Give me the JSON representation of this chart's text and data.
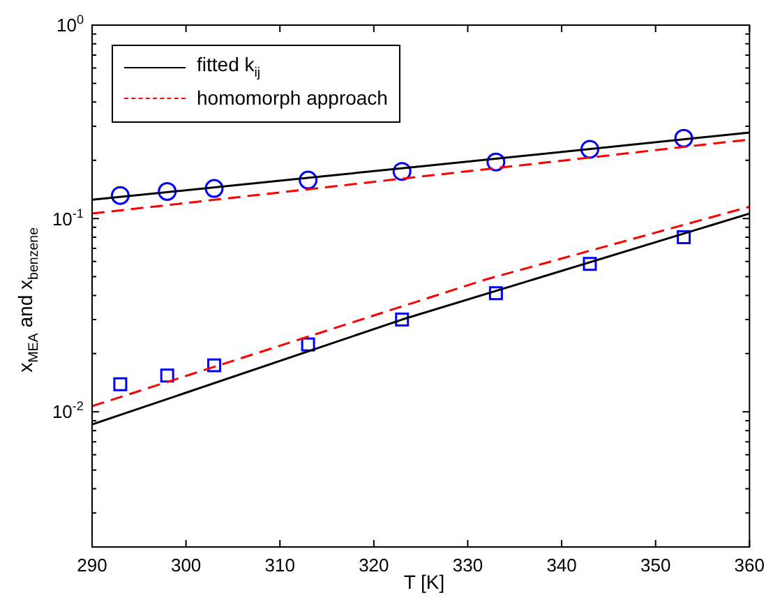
{
  "chart_data": {
    "type": "line",
    "xlabel": "T [K]",
    "ylabel": "x$_{MEA}$ and x$_{benzene}$",
    "log": "y",
    "xlim": [
      290,
      360
    ],
    "xticks": [
      290,
      300,
      310,
      320,
      330,
      340,
      350,
      360
    ],
    "ylim": [
      0.002,
      1
    ],
    "yticks": [
      {
        "value": 0.002,
        "label": null
      },
      {
        "value": 0.003,
        "label": null
      },
      {
        "value": 0.004,
        "label": null
      },
      {
        "value": 0.005,
        "label": null
      },
      {
        "value": 0.006,
        "label": null
      },
      {
        "value": 0.007,
        "label": null
      },
      {
        "value": 0.008,
        "label": null
      },
      {
        "value": 0.009,
        "label": null
      },
      {
        "value": 0.01,
        "label": "10$^{-2}$"
      },
      {
        "value": 0.02,
        "label": null
      },
      {
        "value": 0.03,
        "label": null
      },
      {
        "value": 0.04,
        "label": null
      },
      {
        "value": 0.05,
        "label": null
      },
      {
        "value": 0.06,
        "label": null
      },
      {
        "value": 0.07,
        "label": null
      },
      {
        "value": 0.08,
        "label": null
      },
      {
        "value": 0.09,
        "label": null
      },
      {
        "value": 0.1,
        "label": "10$^{-1}$"
      },
      {
        "value": 0.2,
        "label": null
      },
      {
        "value": 0.3,
        "label": null
      },
      {
        "value": 0.4,
        "label": null
      },
      {
        "value": 0.5,
        "label": null
      },
      {
        "value": 0.6,
        "label": null
      },
      {
        "value": 0.7,
        "label": null
      },
      {
        "value": 0.8,
        "label": null
      },
      {
        "value": 0.9,
        "label": null
      },
      {
        "value": 1,
        "label": "10$^{0}$"
      }
    ],
    "grid": false,
    "legend": "top left",
    "series": [
      {
        "name": "fitted k$_{ij}$",
        "type": "line",
        "line_style": "solid",
        "marker": "none",
        "color": "#000000",
        "x": [
          290,
          325,
          360
        ],
        "values": [
          0.125,
          0.186,
          0.278
        ]
      },
      {
        "name": "homomorph approach",
        "type": "line",
        "line_style": "dashed",
        "marker": "none",
        "color": "#ff0000",
        "x": [
          290,
          360
        ],
        "values": [
          0.106,
          0.256
        ]
      },
      {
        "type": "line",
        "line_style": "solid",
        "marker": "none",
        "color": "#000000",
        "x": [
          290,
          323,
          360
        ],
        "values": [
          0.0086,
          0.03,
          0.106
        ]
      },
      {
        "type": "line",
        "line_style": "dashed",
        "marker": "none",
        "color": "#ff0000",
        "x": [
          290,
          332,
          360
        ],
        "values": [
          0.0107,
          0.0485,
          0.115
        ]
      },
      {
        "type": "scatter",
        "marker": "circle",
        "color": "#0000ff",
        "x": [
          293,
          298,
          303,
          313,
          323,
          333,
          343,
          353
        ],
        "values": [
          0.1315,
          0.138,
          0.143,
          0.158,
          0.175,
          0.196,
          0.228,
          0.26
        ]
      },
      {
        "type": "scatter",
        "marker": "square",
        "color": "#0000ff",
        "x": [
          293,
          298,
          303,
          313,
          323,
          333,
          343,
          353
        ],
        "values": [
          0.0139,
          0.0154,
          0.0174,
          0.0223,
          0.03,
          0.0411,
          0.0582,
          0.08
        ]
      }
    ]
  }
}
